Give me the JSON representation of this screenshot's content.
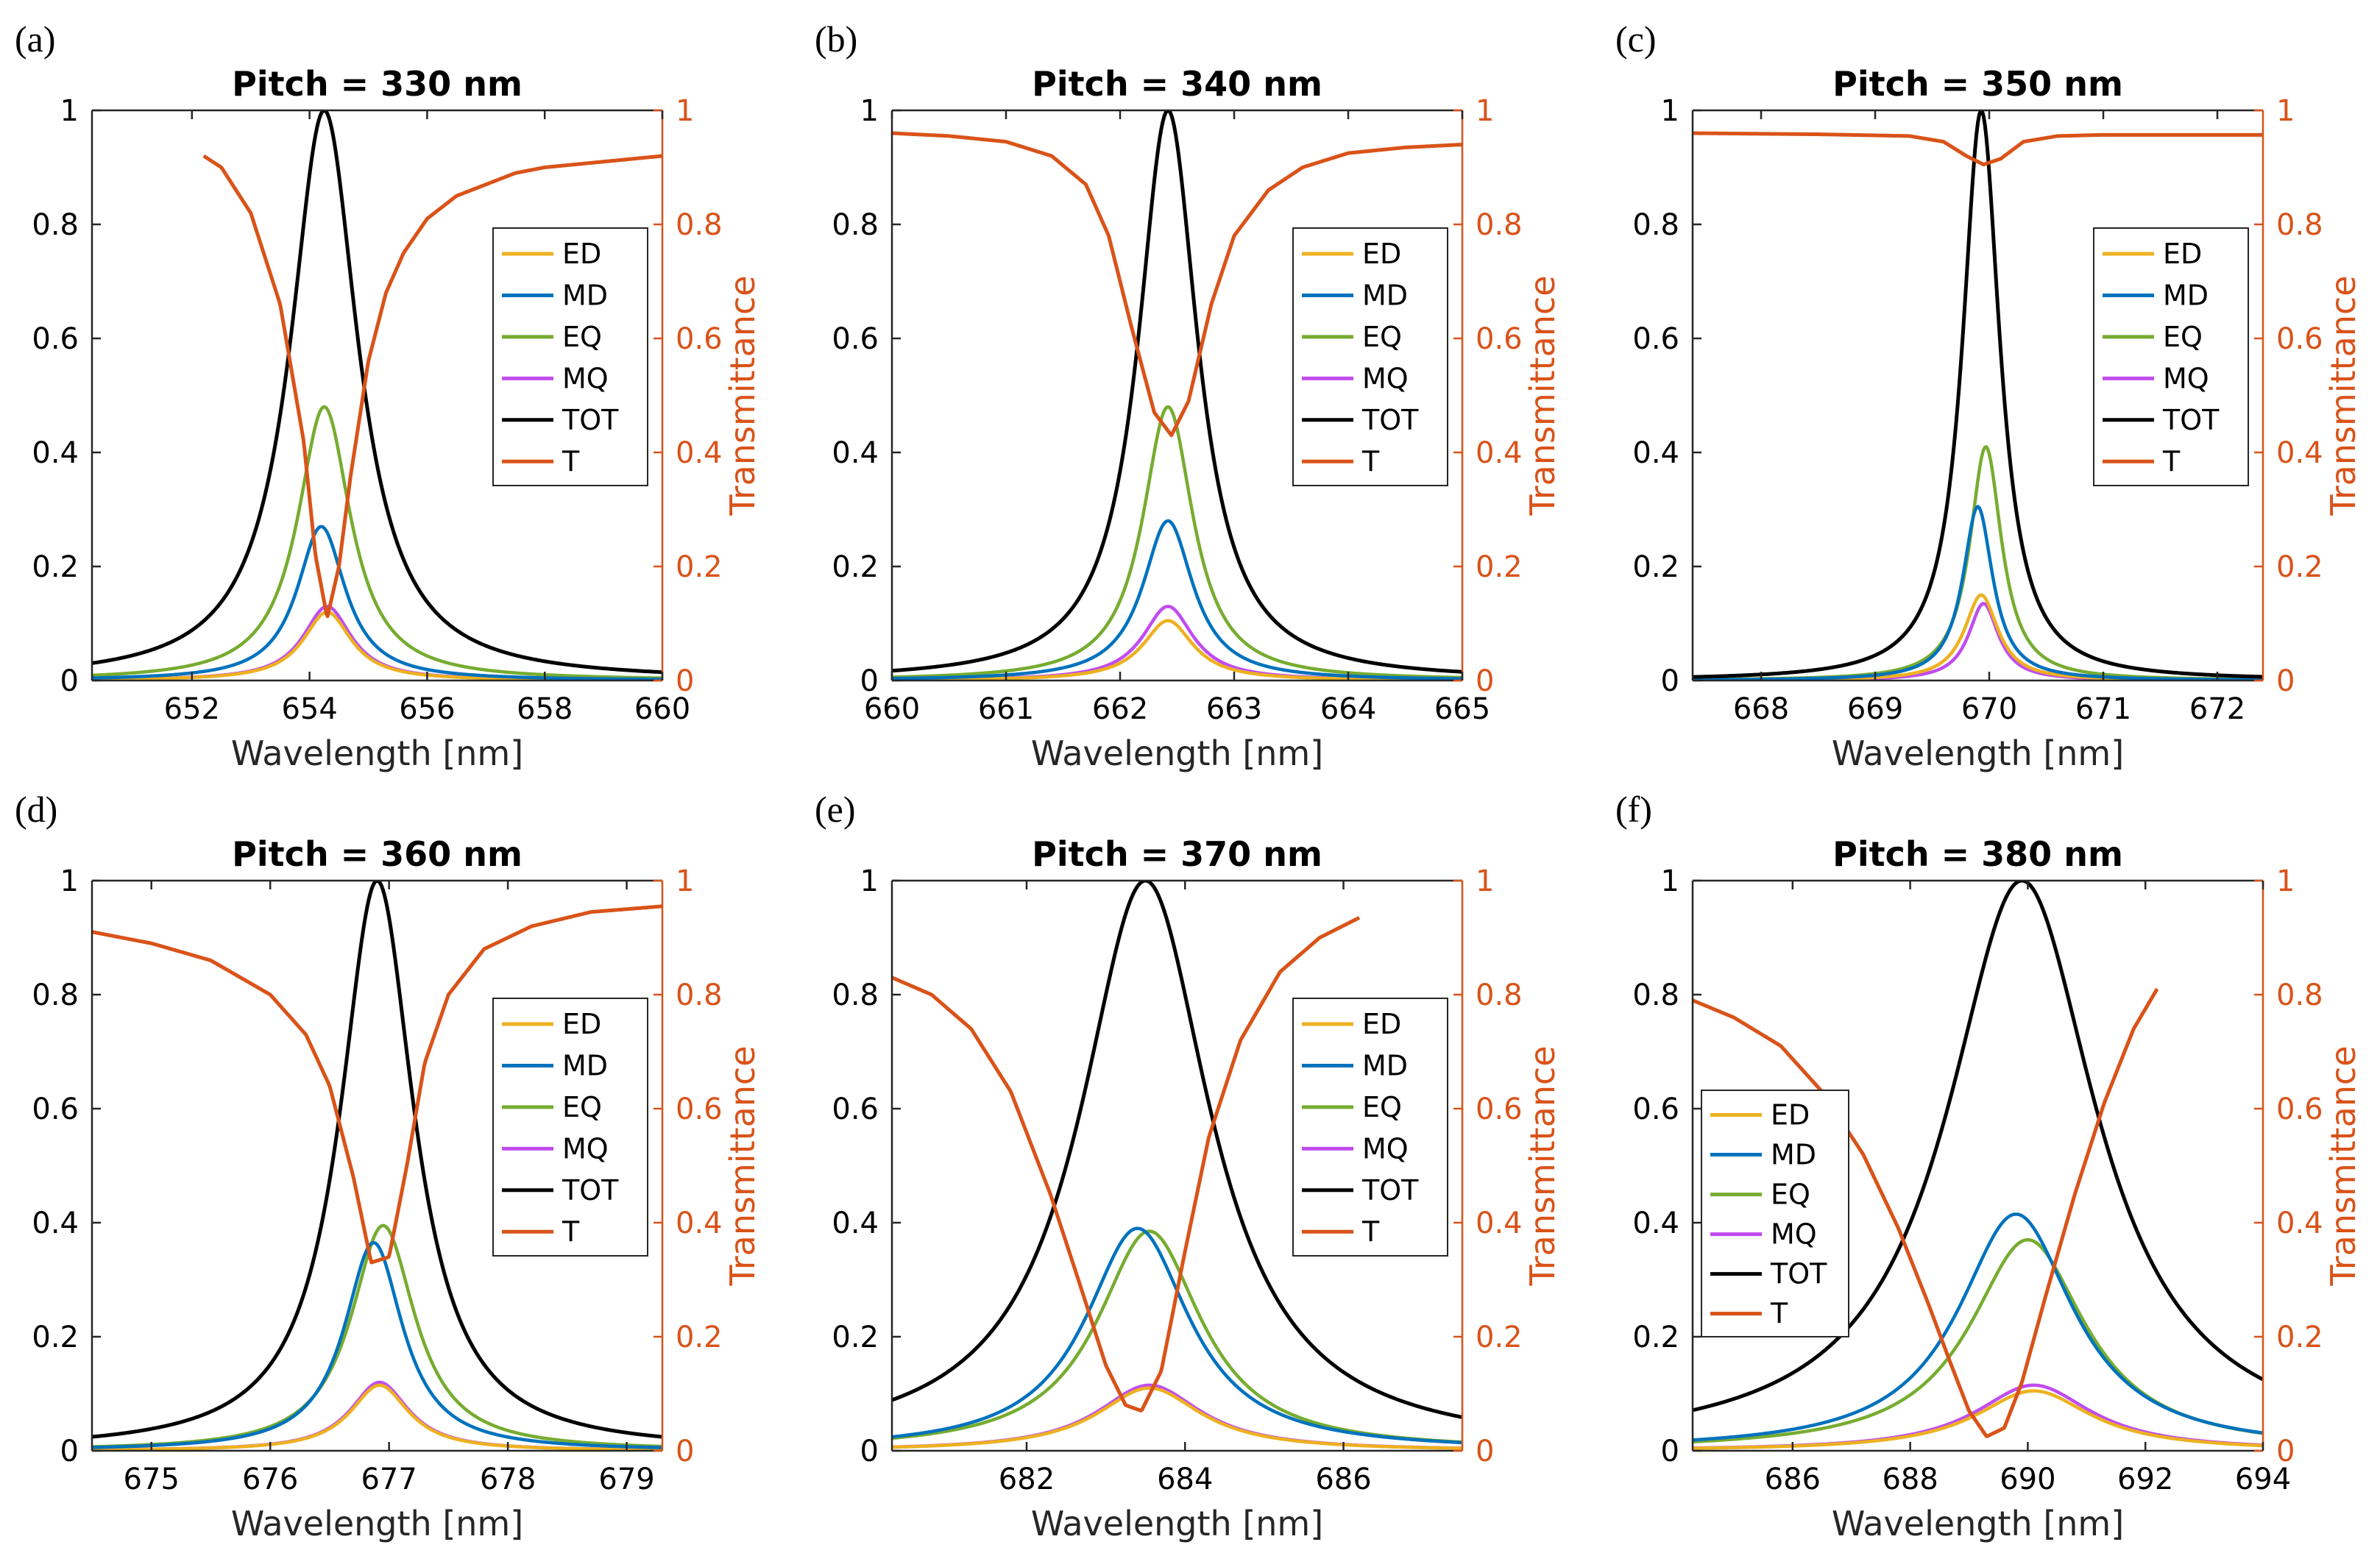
{
  "figure": {
    "colors": {
      "ED": "#EDB120",
      "MD": "#0072BD",
      "EQ": "#77AC30",
      "MQ": "#C04CF0",
      "TOT": "#000000",
      "T": "#D95319"
    },
    "left_ticks": [
      "0",
      "0.2",
      "0.4",
      "0.6",
      "0.8",
      "1"
    ],
    "right_ticks": [
      "0",
      "0.2",
      "0.4",
      "0.6",
      "0.8",
      "1"
    ]
  },
  "chart_data": [
    {
      "type": "line",
      "panel_label": "(a)",
      "title": "Pitch = 330 nm",
      "xlabel": "Wavelength [nm]",
      "ylabel_right": "Transmittance",
      "xlim": [
        650.3,
        660
      ],
      "xticks": [
        652,
        654,
        656,
        658,
        660
      ],
      "ylim": [
        0,
        1
      ],
      "center": 654.25,
      "legend": {
        "position": "right",
        "entries": [
          "ED",
          "MD",
          "EQ",
          "MQ",
          "TOT",
          "T"
        ]
      },
      "series": [
        {
          "name": "ED",
          "peak": 0.12,
          "width": 0.5,
          "x0": 654.3
        },
        {
          "name": "MD",
          "peak": 0.27,
          "width": 0.5,
          "x0": 654.2
        },
        {
          "name": "EQ",
          "peak": 0.48,
          "width": 0.55,
          "x0": 654.25
        },
        {
          "name": "MQ",
          "peak": 0.13,
          "width": 0.5,
          "x0": 654.3
        },
        {
          "name": "TOT",
          "peak": 1.0,
          "width": 0.7,
          "x0": 654.25
        }
      ],
      "transmittance": {
        "x": [
          652.2,
          652.5,
          653.0,
          653.5,
          653.9,
          654.1,
          654.3,
          654.5,
          654.7,
          655.0,
          655.3,
          655.6,
          656.0,
          656.5,
          657.0,
          657.5,
          658.0,
          659.0,
          660.0
        ],
        "y": [
          0.92,
          0.9,
          0.82,
          0.66,
          0.42,
          0.22,
          0.11,
          0.2,
          0.36,
          0.56,
          0.68,
          0.75,
          0.81,
          0.85,
          0.87,
          0.89,
          0.9,
          0.91,
          0.92
        ]
      }
    },
    {
      "type": "line",
      "panel_label": "(b)",
      "title": "Pitch = 340 nm",
      "xlabel": "Wavelength [nm]",
      "ylabel_right": "Transmittance",
      "xlim": [
        660,
        665
      ],
      "xticks": [
        660,
        661,
        662,
        663,
        664,
        665
      ],
      "ylim": [
        0,
        1
      ],
      "center": 662.42,
      "legend": {
        "position": "right",
        "entries": [
          "ED",
          "MD",
          "EQ",
          "MQ",
          "TOT",
          "T"
        ]
      },
      "series": [
        {
          "name": "ED",
          "peak": 0.105,
          "width": 0.27,
          "x0": 662.42
        },
        {
          "name": "MD",
          "peak": 0.28,
          "width": 0.27,
          "x0": 662.42
        },
        {
          "name": "EQ",
          "peak": 0.48,
          "width": 0.27,
          "x0": 662.42
        },
        {
          "name": "MQ",
          "peak": 0.13,
          "width": 0.27,
          "x0": 662.42
        },
        {
          "name": "TOT",
          "peak": 1.0,
          "width": 0.32,
          "x0": 662.42
        }
      ],
      "transmittance": {
        "x": [
          660.0,
          660.5,
          661.0,
          661.4,
          661.7,
          661.9,
          662.1,
          662.3,
          662.45,
          662.6,
          662.8,
          663.0,
          663.3,
          663.6,
          664.0,
          664.5,
          665.0
        ],
        "y": [
          0.96,
          0.955,
          0.945,
          0.92,
          0.87,
          0.78,
          0.62,
          0.47,
          0.43,
          0.49,
          0.66,
          0.78,
          0.86,
          0.9,
          0.925,
          0.935,
          0.94
        ]
      }
    },
    {
      "type": "line",
      "panel_label": "(c)",
      "title": "Pitch = 350 nm",
      "xlabel": "Wavelength [nm]",
      "ylabel_right": "Transmittance",
      "xlim": [
        667.4,
        672.4
      ],
      "xticks": [
        668,
        669,
        670,
        671,
        672
      ],
      "ylim": [
        0,
        1
      ],
      "center": 669.93,
      "legend": {
        "position": "right",
        "entries": [
          "ED",
          "MD",
          "EQ",
          "MQ",
          "TOT",
          "T"
        ]
      },
      "series": [
        {
          "name": "ED",
          "peak": 0.15,
          "width": 0.18,
          "x0": 669.93
        },
        {
          "name": "MD",
          "peak": 0.305,
          "width": 0.16,
          "x0": 669.9
        },
        {
          "name": "EQ",
          "peak": 0.41,
          "width": 0.17,
          "x0": 669.97
        },
        {
          "name": "MQ",
          "peak": 0.135,
          "width": 0.16,
          "x0": 669.95
        },
        {
          "name": "TOT",
          "peak": 1.0,
          "width": 0.2,
          "x0": 669.93
        }
      ],
      "transmittance": {
        "x": [
          667.4,
          668.5,
          669.3,
          669.6,
          669.8,
          669.95,
          670.1,
          670.3,
          670.6,
          671.0,
          672.4
        ],
        "y": [
          0.96,
          0.958,
          0.955,
          0.945,
          0.92,
          0.905,
          0.915,
          0.945,
          0.955,
          0.957,
          0.957
        ]
      }
    },
    {
      "type": "line",
      "panel_label": "(d)",
      "title": "Pitch = 360 nm",
      "xlabel": "Wavelength [nm]",
      "ylabel_right": "Transmittance",
      "xlim": [
        674.5,
        679.3
      ],
      "xticks": [
        675,
        676,
        677,
        678,
        679
      ],
      "ylim": [
        0,
        1
      ],
      "center": 676.9,
      "legend": {
        "position": "right",
        "entries": [
          "ED",
          "MD",
          "EQ",
          "MQ",
          "TOT",
          "T"
        ]
      },
      "series": [
        {
          "name": "ED",
          "peak": 0.115,
          "width": 0.3,
          "x0": 676.92
        },
        {
          "name": "MD",
          "peak": 0.365,
          "width": 0.3,
          "x0": 676.87
        },
        {
          "name": "EQ",
          "peak": 0.395,
          "width": 0.33,
          "x0": 676.95
        },
        {
          "name": "MQ",
          "peak": 0.12,
          "width": 0.3,
          "x0": 676.92
        },
        {
          "name": "TOT",
          "peak": 1.0,
          "width": 0.38,
          "x0": 676.9
        }
      ],
      "transmittance": {
        "x": [
          674.5,
          675.0,
          675.5,
          676.0,
          676.3,
          676.5,
          676.7,
          676.85,
          677.0,
          677.15,
          677.3,
          677.5,
          677.8,
          678.2,
          678.7,
          679.3
        ],
        "y": [
          0.91,
          0.89,
          0.86,
          0.8,
          0.73,
          0.64,
          0.48,
          0.33,
          0.34,
          0.5,
          0.68,
          0.8,
          0.88,
          0.92,
          0.945,
          0.955
        ]
      }
    },
    {
      "type": "line",
      "panel_label": "(e)",
      "title": "Pitch = 370 nm",
      "xlabel": "Wavelength [nm]",
      "ylabel_right": "Transmittance",
      "xlim": [
        680.3,
        687.5
      ],
      "xticks": [
        682,
        684,
        686
      ],
      "ylim": [
        0,
        1
      ],
      "center": 683.5,
      "legend": {
        "position": "right",
        "entries": [
          "ED",
          "MD",
          "EQ",
          "MQ",
          "TOT",
          "T"
        ]
      },
      "series": [
        {
          "name": "ED",
          "peak": 0.11,
          "width": 0.8,
          "x0": 683.55
        },
        {
          "name": "MD",
          "peak": 0.39,
          "width": 0.8,
          "x0": 683.4
        },
        {
          "name": "EQ",
          "peak": 0.385,
          "width": 0.8,
          "x0": 683.55
        },
        {
          "name": "MQ",
          "peak": 0.115,
          "width": 0.8,
          "x0": 683.55
        },
        {
          "name": "TOT",
          "peak": 1.0,
          "width": 1.0,
          "x0": 683.5
        }
      ],
      "transmittance": {
        "x": [
          680.3,
          680.8,
          681.3,
          681.8,
          682.3,
          682.7,
          683.0,
          683.25,
          683.45,
          683.7,
          684.0,
          684.3,
          684.7,
          685.2,
          685.7,
          686.2
        ],
        "y": [
          0.83,
          0.8,
          0.74,
          0.63,
          0.45,
          0.28,
          0.15,
          0.08,
          0.07,
          0.14,
          0.35,
          0.55,
          0.72,
          0.84,
          0.9,
          0.935
        ]
      }
    },
    {
      "type": "line",
      "panel_label": "(f)",
      "title": "Pitch = 380 nm",
      "xlabel": "Wavelength [nm]",
      "ylabel_right": "Transmittance",
      "xlim": [
        684.3,
        694
      ],
      "xticks": [
        686,
        688,
        690,
        692,
        694
      ],
      "ylim": [
        0,
        1
      ],
      "center": 689.9,
      "legend": {
        "position": "left",
        "entries": [
          "ED",
          "MD",
          "EQ",
          "MQ",
          "TOT",
          "T"
        ]
      },
      "series": [
        {
          "name": "ED",
          "peak": 0.105,
          "width": 1.2,
          "x0": 690.1
        },
        {
          "name": "MD",
          "peak": 0.415,
          "width": 1.2,
          "x0": 689.8
        },
        {
          "name": "EQ",
          "peak": 0.37,
          "width": 1.2,
          "x0": 690.0
        },
        {
          "name": "MQ",
          "peak": 0.115,
          "width": 1.2,
          "x0": 690.1
        },
        {
          "name": "TOT",
          "peak": 1.0,
          "width": 1.55,
          "x0": 689.9
        }
      ],
      "transmittance": {
        "x": [
          684.3,
          685.0,
          685.8,
          686.5,
          687.2,
          687.8,
          688.3,
          688.7,
          689.0,
          689.3,
          689.6,
          689.9,
          690.3,
          690.8,
          691.3,
          691.8,
          692.2
        ],
        "y": [
          0.79,
          0.76,
          0.71,
          0.63,
          0.52,
          0.39,
          0.26,
          0.15,
          0.07,
          0.025,
          0.04,
          0.12,
          0.27,
          0.45,
          0.61,
          0.74,
          0.81
        ]
      }
    }
  ]
}
